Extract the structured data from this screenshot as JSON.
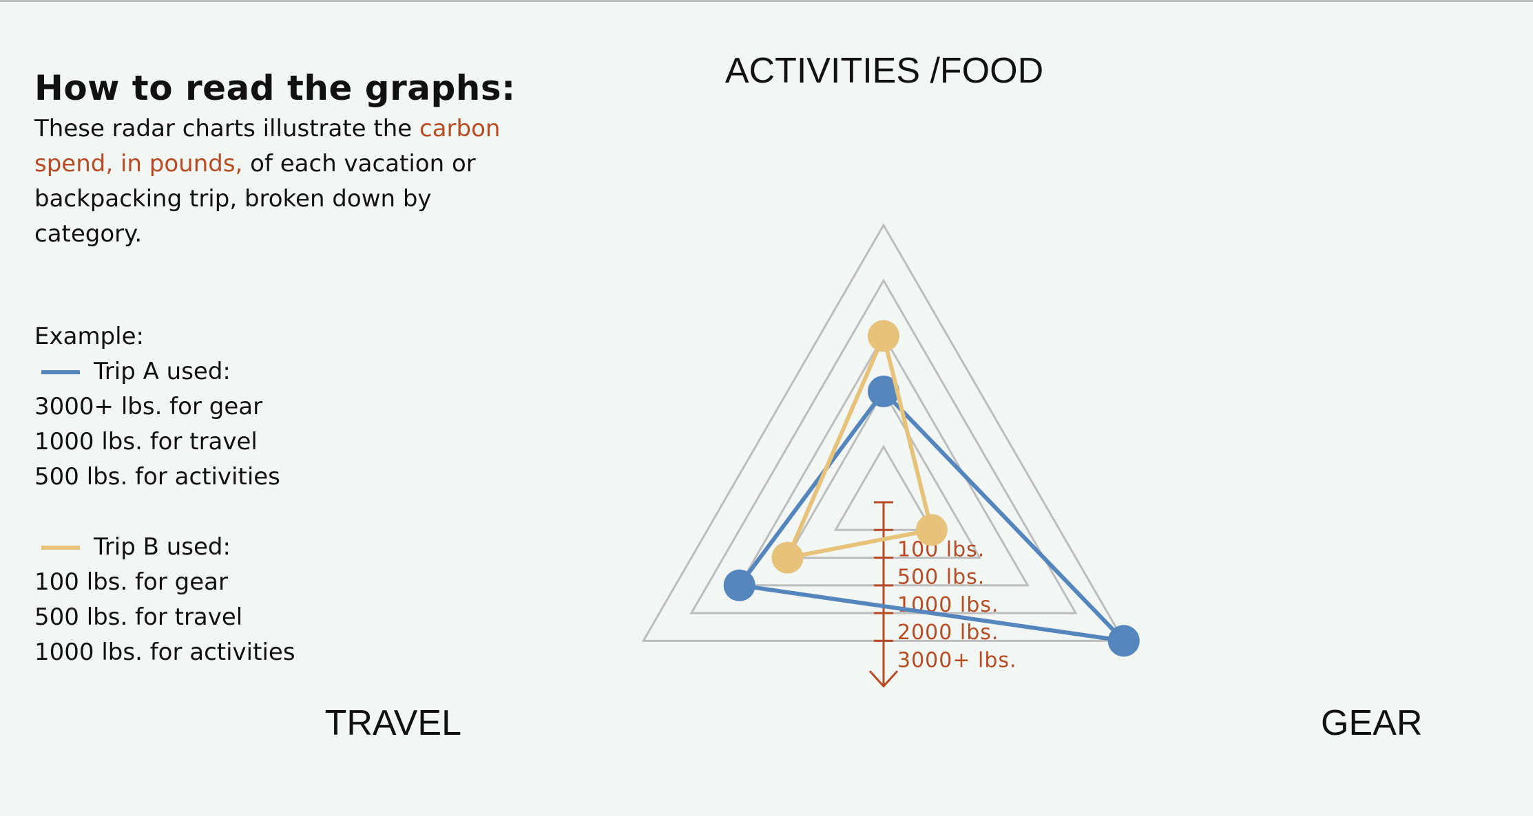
{
  "legend": {
    "title": "How to read the graphs:",
    "intro_part1": "These radar charts illustrate the ",
    "intro_highlight": "carbon spend, in pounds,",
    "intro_part2": " of each vacation or backpacking trip, broken down by category.",
    "example_label": "Example:",
    "trip_a": {
      "header": "Trip A used:",
      "lines": [
        "3000+ lbs. for gear",
        "1000 lbs. for travel",
        "500 lbs. for activities"
      ]
    },
    "trip_b": {
      "header": "Trip B used:",
      "lines": [
        "100 lbs. for gear",
        "500 lbs. for travel",
        "1000 lbs. for activities"
      ]
    }
  },
  "colors": {
    "trip_a": "#5585bd",
    "trip_b": "#e6c27a",
    "accent": "#b84a24",
    "grid": "#bdbdbd"
  },
  "chart_data": {
    "type": "radar",
    "axes": [
      "ACTIVITIES /FOOD",
      "GEAR",
      "TRAVEL"
    ],
    "scale_levels": [
      "100 lbs.",
      "500 lbs.",
      "1000 lbs.",
      "2000 lbs.",
      "3000+ lbs."
    ],
    "series": [
      {
        "name": "Trip A",
        "color": "#5585bd",
        "values": {
          "ACTIVITIES /FOOD": "500 lbs.",
          "GEAR": "3000+ lbs.",
          "TRAVEL": "1000 lbs."
        }
      },
      {
        "name": "Trip B",
        "color": "#e6c27a",
        "values": {
          "ACTIVITIES /FOOD": "1000 lbs.",
          "GEAR": "100 lbs.",
          "TRAVEL": "500 lbs."
        }
      }
    ]
  }
}
